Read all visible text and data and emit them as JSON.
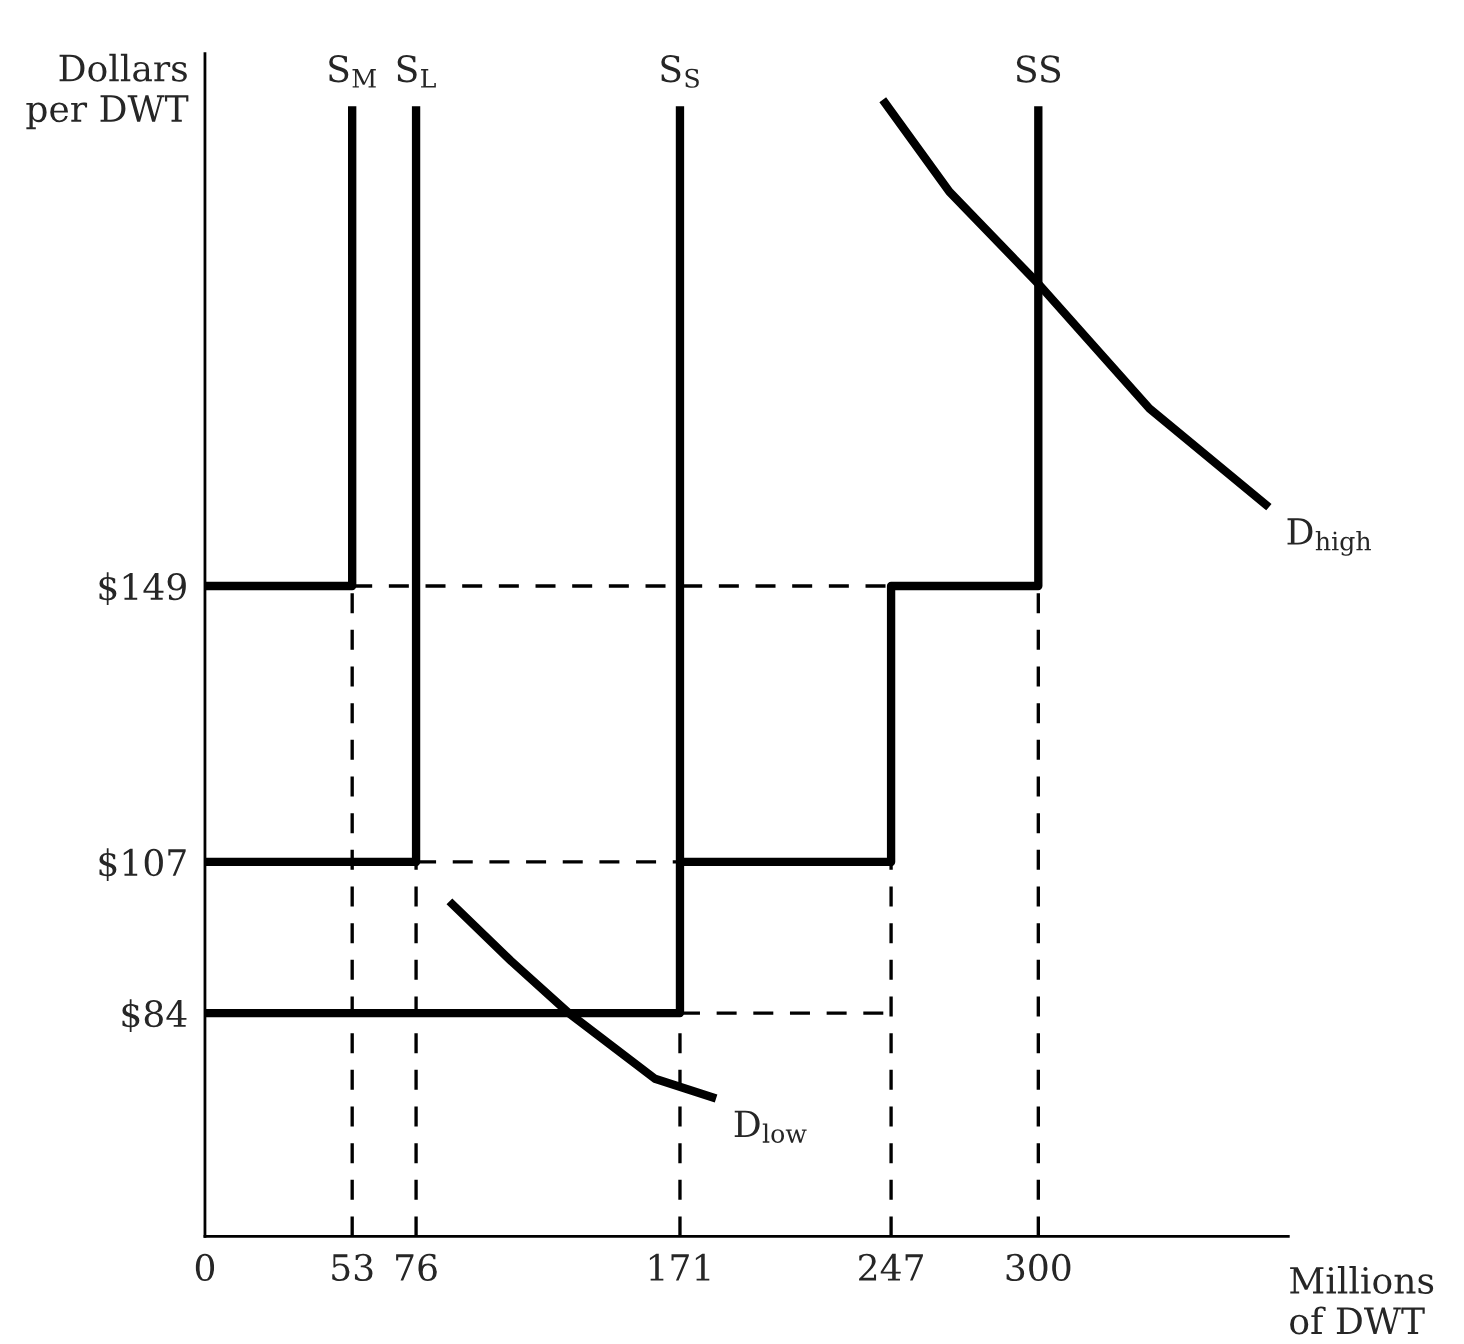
{
  "chart_data": {
    "type": "line",
    "xlabel": "Millions\nof DWT",
    "ylabel": "Dollars\nper DWT",
    "xlim": [
      0,
      390
    ],
    "ylim": [
      50,
      230
    ],
    "xticks": [
      0,
      53,
      76,
      171,
      247,
      300
    ],
    "yticks": [
      {
        "value": 84,
        "label": "$84"
      },
      {
        "value": 107,
        "label": "$107"
      },
      {
        "value": 149,
        "label": "$149"
      }
    ],
    "grid": false,
    "legend": false,
    "series": [
      {
        "name": "S$_{M}$",
        "color": "#000000",
        "line_style": "solid",
        "x": [
          0,
          53,
          53
        ],
        "values": [
          149,
          149,
          222
        ]
      },
      {
        "name": "S$_{L}$",
        "color": "#000000",
        "line_style": "solid",
        "x": [
          0,
          76,
          76
        ],
        "values": [
          107,
          107,
          222
        ]
      },
      {
        "name": "S$_{S}$",
        "color": "#000000",
        "line_style": "solid",
        "x": [
          0,
          171,
          171
        ],
        "values": [
          84,
          84,
          222
        ]
      },
      {
        "name": "SS",
        "color": "#000000",
        "line_style": "solid",
        "x": [
          171,
          247,
          247,
          300,
          300
        ],
        "values": [
          107,
          107,
          149,
          149,
          222
        ]
      },
      {
        "name": "D$_{low}$",
        "color": "#000000",
        "line_style": "solid",
        "x": [
          88,
          110,
          131,
          162,
          184
        ],
        "values": [
          101,
          92,
          84,
          74,
          71
        ]
      },
      {
        "name": "D$_{high}$",
        "color": "#000000",
        "line_style": "solid",
        "x": [
          244,
          268,
          300,
          340,
          383
        ],
        "values": [
          223,
          209,
          195,
          176,
          161
        ]
      },
      {
        "color": "#000000",
        "line_style": "dashed",
        "x": [
          53,
          53
        ],
        "values": [
          50,
          149
        ]
      },
      {
        "color": "#000000",
        "line_style": "dashed",
        "x": [
          76,
          76
        ],
        "values": [
          50,
          107
        ]
      },
      {
        "color": "#000000",
        "line_style": "dashed",
        "x": [
          171,
          171
        ],
        "values": [
          50,
          84
        ]
      },
      {
        "color": "#000000",
        "line_style": "dashed",
        "x": [
          247,
          247
        ],
        "values": [
          50,
          107
        ]
      },
      {
        "color": "#000000",
        "line_style": "dashed",
        "x": [
          300,
          300
        ],
        "values": [
          50,
          149
        ]
      },
      {
        "color": "#000000",
        "line_style": "dashed",
        "x": [
          53,
          247
        ],
        "values": [
          149,
          149
        ]
      },
      {
        "color": "#000000",
        "line_style": "dashed",
        "x": [
          76,
          171
        ],
        "values": [
          107,
          107
        ]
      },
      {
        "color": "#000000",
        "line_style": "dashed",
        "x": [
          171,
          247
        ],
        "values": [
          84,
          84
        ]
      }
    ]
  }
}
